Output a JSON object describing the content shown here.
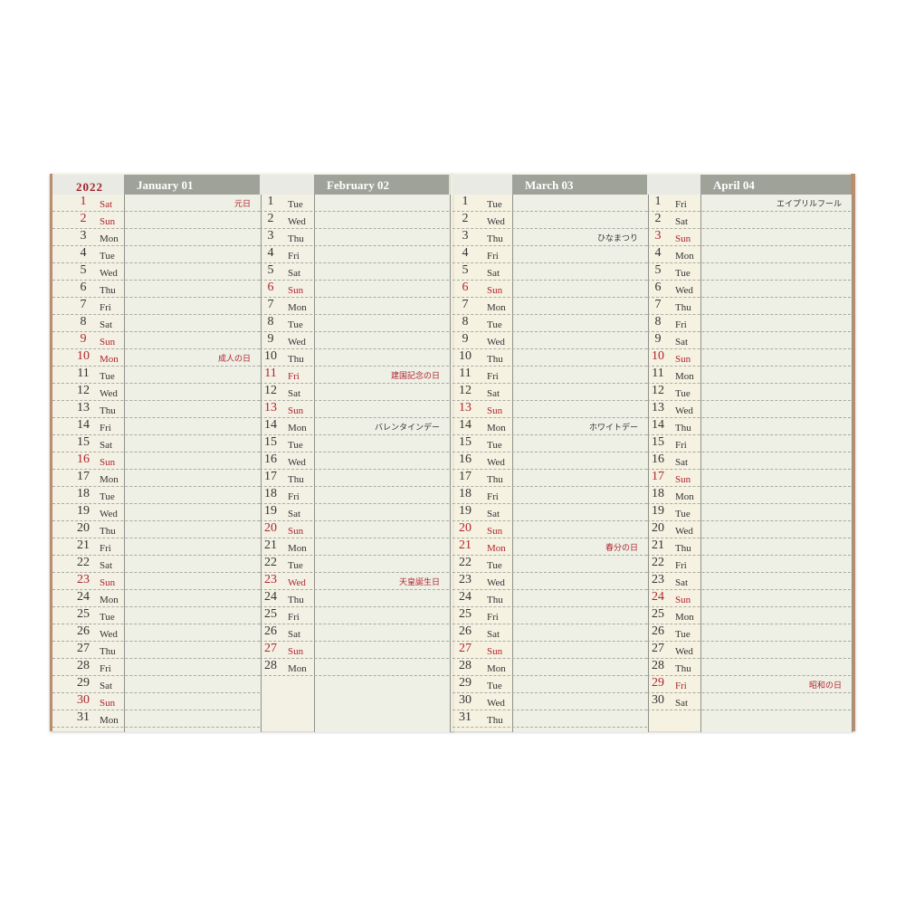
{
  "year": "2022",
  "colors": {
    "holiday": "#b0242e",
    "header": "#9ea299",
    "paper": "#f3f1e4"
  },
  "months": [
    {
      "title": "January 01",
      "days": [
        "Sat",
        "Sun",
        "Mon",
        "Tue",
        "Wed",
        "Thu",
        "Fri",
        "Sat",
        "Sun",
        "Mon",
        "Tue",
        "Wed",
        "Thu",
        "Fri",
        "Sat",
        "Sun",
        "Mon",
        "Tue",
        "Wed",
        "Thu",
        "Fri",
        "Sat",
        "Sun",
        "Mon",
        "Tue",
        "Wed",
        "Thu",
        "Fri",
        "Sat",
        "Sun",
        "Mon"
      ],
      "red": [
        1,
        2,
        9,
        10,
        16,
        23,
        30
      ],
      "notes": {
        "1": {
          "text": "元日",
          "red": true
        },
        "10": {
          "text": "成人の日",
          "red": true
        }
      }
    },
    {
      "title": "February 02",
      "days": [
        "Tue",
        "Wed",
        "Thu",
        "Fri",
        "Sat",
        "Sun",
        "Mon",
        "Tue",
        "Wed",
        "Thu",
        "Fri",
        "Sat",
        "Sun",
        "Mon",
        "Tue",
        "Wed",
        "Thu",
        "Fri",
        "Sat",
        "Sun",
        "Mon",
        "Tue",
        "Wed",
        "Thu",
        "Fri",
        "Sat",
        "Sun",
        "Mon"
      ],
      "red": [
        6,
        11,
        13,
        20,
        23,
        27
      ],
      "notes": {
        "11": {
          "text": "建国記念の日",
          "red": true
        },
        "14": {
          "text": "バレンタインデー",
          "red": false
        },
        "23": {
          "text": "天皇誕生日",
          "red": true
        }
      }
    },
    {
      "title": "March 03",
      "days": [
        "Tue",
        "Wed",
        "Thu",
        "Fri",
        "Sat",
        "Sun",
        "Mon",
        "Tue",
        "Wed",
        "Thu",
        "Fri",
        "Sat",
        "Sun",
        "Mon",
        "Tue",
        "Wed",
        "Thu",
        "Fri",
        "Sat",
        "Sun",
        "Mon",
        "Tue",
        "Wed",
        "Thu",
        "Fri",
        "Sat",
        "Sun",
        "Mon",
        "Tue",
        "Wed",
        "Thu"
      ],
      "red": [
        6,
        13,
        20,
        21,
        27
      ],
      "notes": {
        "3": {
          "text": "ひなまつり",
          "red": false
        },
        "14": {
          "text": "ホワイトデー",
          "red": false
        },
        "21": {
          "text": "春分の日",
          "red": true
        }
      }
    },
    {
      "title": "April 04",
      "days": [
        "Fri",
        "Sat",
        "Sun",
        "Mon",
        "Tue",
        "Wed",
        "Thu",
        "Fri",
        "Sat",
        "Sun",
        "Mon",
        "Tue",
        "Wed",
        "Thu",
        "Fri",
        "Sat",
        "Sun",
        "Mon",
        "Tue",
        "Wed",
        "Thu",
        "Fri",
        "Sat",
        "Sun",
        "Mon",
        "Tue",
        "Wed",
        "Thu",
        "Fri",
        "Sat"
      ],
      "red": [
        3,
        10,
        17,
        24,
        29
      ],
      "notes": {
        "1": {
          "text": "エイプリルフール",
          "red": false
        },
        "29": {
          "text": "昭和の日",
          "red": true
        }
      }
    }
  ]
}
